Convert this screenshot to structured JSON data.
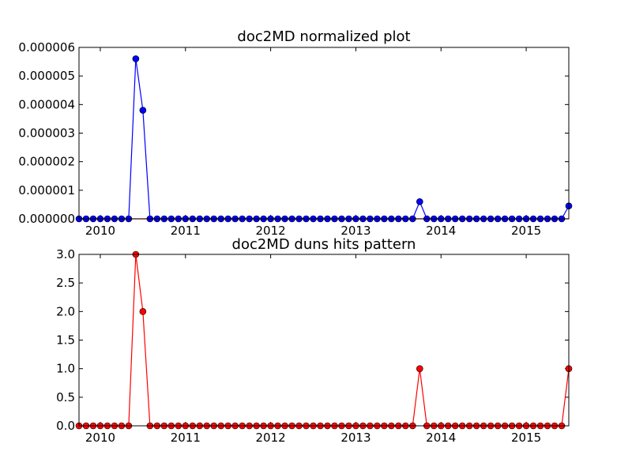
{
  "chart_data": [
    {
      "type": "line",
      "title": "doc2MD normalized plot",
      "xlabel": "",
      "ylabel": "",
      "x_start": "2009-10",
      "x_step": "month",
      "xticks": [
        "2010",
        "2011",
        "2012",
        "2013",
        "2014",
        "2015"
      ],
      "ylim": [
        0,
        6e-06
      ],
      "yticks": [
        "0.000000",
        "0.000001",
        "0.000002",
        "0.000003",
        "0.000004",
        "0.000005",
        "0.000006"
      ],
      "grid": false,
      "series": [
        {
          "color": "#0000ff",
          "marker": "circle",
          "values": [
            0,
            0,
            0,
            0,
            0,
            0,
            0,
            0,
            5.6e-06,
            3.8e-06,
            0,
            0,
            0,
            0,
            0,
            0,
            0,
            0,
            0,
            0,
            0,
            0,
            0,
            0,
            0,
            0,
            0,
            0,
            0,
            0,
            0,
            0,
            0,
            0,
            0,
            0,
            0,
            0,
            0,
            0,
            0,
            0,
            0,
            0,
            0,
            0,
            0,
            0,
            6e-07,
            0,
            0,
            0,
            0,
            0,
            0,
            0,
            0,
            0,
            0,
            0,
            0,
            0,
            0,
            0,
            0,
            0,
            0,
            0,
            0,
            4.5e-07
          ]
        },
        {
          "color": "#ff0000",
          "marker": "none",
          "values": [
            0,
            0,
            0,
            0,
            0,
            0,
            0,
            0,
            0,
            0,
            0,
            0,
            0,
            0,
            0,
            0,
            0,
            0,
            0,
            0,
            0,
            0,
            0,
            0,
            0,
            0,
            0,
            0,
            0,
            0,
            0,
            0,
            0,
            0,
            0,
            0,
            0,
            0,
            0,
            0,
            0,
            0,
            0,
            0,
            0,
            0,
            0,
            0,
            0,
            0,
            0,
            0,
            0,
            0,
            0,
            0,
            0,
            0,
            0,
            0,
            0,
            0,
            0,
            0,
            0,
            0,
            0,
            0,
            0,
            0
          ]
        }
      ]
    },
    {
      "type": "line",
      "title": "doc2MD duns hits pattern",
      "xlabel": "",
      "ylabel": "",
      "x_start": "2009-10",
      "x_step": "month",
      "xticks": [
        "2010",
        "2011",
        "2012",
        "2013",
        "2014",
        "2015"
      ],
      "ylim": [
        0,
        3.0
      ],
      "yticks": [
        "0.0",
        "0.5",
        "1.0",
        "1.5",
        "2.0",
        "2.5",
        "3.0"
      ],
      "grid": false,
      "series": [
        {
          "color": "#ff0000",
          "marker": "circle",
          "values": [
            0,
            0,
            0,
            0,
            0,
            0,
            0,
            0,
            3,
            2,
            0,
            0,
            0,
            0,
            0,
            0,
            0,
            0,
            0,
            0,
            0,
            0,
            0,
            0,
            0,
            0,
            0,
            0,
            0,
            0,
            0,
            0,
            0,
            0,
            0,
            0,
            0,
            0,
            0,
            0,
            0,
            0,
            0,
            0,
            0,
            0,
            0,
            0,
            1,
            0,
            0,
            0,
            0,
            0,
            0,
            0,
            0,
            0,
            0,
            0,
            0,
            0,
            0,
            0,
            0,
            0,
            0,
            0,
            0,
            1
          ]
        }
      ]
    }
  ]
}
